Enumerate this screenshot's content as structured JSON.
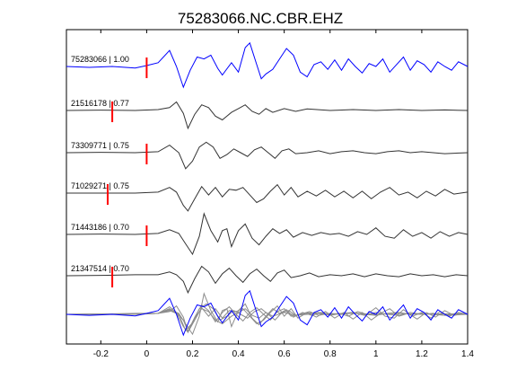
{
  "chart_data": {
    "type": "line",
    "title": "75283066.NC.CBR.EHZ",
    "xlim": [
      -0.35,
      1.4
    ],
    "xticks": [
      -0.2,
      0,
      0.2,
      0.4,
      0.6,
      0.8,
      1,
      1.2,
      1.4
    ],
    "xtick_labels": [
      "-0.2",
      "0",
      "0.2",
      "0.4",
      "0.6",
      "0.8",
      "1",
      "1.2",
      "1.4"
    ],
    "grid": false,
    "colors": {
      "reference": "#0000ff",
      "trace": "#333333",
      "overlay": "#8c8c8c",
      "pick": "#ff0000"
    },
    "traces": [
      {
        "label": "75283066 | 1.00",
        "pick_time": 0.0,
        "color": "#0000ff",
        "points": [
          [
            -0.35,
            0.0
          ],
          [
            -0.25,
            -0.05
          ],
          [
            -0.15,
            0.0
          ],
          [
            -0.05,
            -0.08
          ],
          [
            0.0,
            0.05
          ],
          [
            0.05,
            0.2
          ],
          [
            0.1,
            0.85
          ],
          [
            0.13,
            0.0
          ],
          [
            0.16,
            -1.1
          ],
          [
            0.19,
            -0.2
          ],
          [
            0.22,
            0.5
          ],
          [
            0.25,
            0.4
          ],
          [
            0.28,
            0.6
          ],
          [
            0.31,
            -0.1
          ],
          [
            0.33,
            -0.45
          ],
          [
            0.37,
            0.2
          ],
          [
            0.4,
            -0.3
          ],
          [
            0.43,
            1.0
          ],
          [
            0.45,
            1.25
          ],
          [
            0.48,
            0.1
          ],
          [
            0.5,
            -0.65
          ],
          [
            0.52,
            -0.4
          ],
          [
            0.55,
            -0.15
          ],
          [
            0.58,
            0.4
          ],
          [
            0.61,
            0.95
          ],
          [
            0.64,
            0.6
          ],
          [
            0.67,
            -0.3
          ],
          [
            0.7,
            -0.55
          ],
          [
            0.73,
            0.1
          ],
          [
            0.76,
            0.25
          ],
          [
            0.79,
            -0.15
          ],
          [
            0.82,
            0.35
          ],
          [
            0.85,
            -0.2
          ],
          [
            0.88,
            0.4
          ],
          [
            0.91,
            0.0
          ],
          [
            0.94,
            -0.35
          ],
          [
            0.97,
            0.15
          ],
          [
            1.0,
            0.0
          ],
          [
            1.03,
            0.4
          ],
          [
            1.06,
            -0.3
          ],
          [
            1.09,
            0.1
          ],
          [
            1.12,
            0.5
          ],
          [
            1.15,
            -0.2
          ],
          [
            1.18,
            0.3
          ],
          [
            1.21,
            0.1
          ],
          [
            1.24,
            -0.3
          ],
          [
            1.27,
            0.25
          ],
          [
            1.3,
            0.0
          ],
          [
            1.33,
            -0.2
          ],
          [
            1.36,
            0.25
          ],
          [
            1.4,
            0.0
          ]
        ]
      },
      {
        "label": "21516178 | 0.77",
        "pick_time": -0.15,
        "color": "#333333",
        "points": [
          [
            -0.35,
            0.0
          ],
          [
            -0.2,
            0.02
          ],
          [
            -0.05,
            0.0
          ],
          [
            0.05,
            0.05
          ],
          [
            0.1,
            0.15
          ],
          [
            0.13,
            0.45
          ],
          [
            0.16,
            -0.15
          ],
          [
            0.18,
            -0.95
          ],
          [
            0.21,
            -0.2
          ],
          [
            0.24,
            0.3
          ],
          [
            0.27,
            0.15
          ],
          [
            0.3,
            -0.3
          ],
          [
            0.33,
            -0.5
          ],
          [
            0.37,
            -0.1
          ],
          [
            0.4,
            0.1
          ],
          [
            0.43,
            0.3
          ],
          [
            0.46,
            -0.05
          ],
          [
            0.49,
            -0.2
          ],
          [
            0.52,
            0.1
          ],
          [
            0.55,
            -0.1
          ],
          [
            0.6,
            0.1
          ],
          [
            0.65,
            -0.05
          ],
          [
            0.7,
            0.08
          ],
          [
            0.8,
            0.0
          ],
          [
            0.9,
            0.05
          ],
          [
            1.0,
            0.0
          ],
          [
            1.1,
            0.05
          ],
          [
            1.2,
            0.0
          ],
          [
            1.3,
            0.03
          ],
          [
            1.4,
            0.0
          ]
        ]
      },
      {
        "label": "73309771 | 0.75",
        "pick_time": 0.0,
        "color": "#333333",
        "points": [
          [
            -0.35,
            0.0
          ],
          [
            -0.2,
            0.02
          ],
          [
            -0.05,
            0.0
          ],
          [
            0.05,
            0.05
          ],
          [
            0.1,
            0.4
          ],
          [
            0.14,
            0.0
          ],
          [
            0.17,
            -0.85
          ],
          [
            0.2,
            -0.45
          ],
          [
            0.23,
            0.3
          ],
          [
            0.26,
            0.55
          ],
          [
            0.29,
            0.3
          ],
          [
            0.32,
            -0.3
          ],
          [
            0.35,
            -0.1
          ],
          [
            0.38,
            0.2
          ],
          [
            0.41,
            0.0
          ],
          [
            0.44,
            -0.2
          ],
          [
            0.47,
            0.15
          ],
          [
            0.5,
            0.3
          ],
          [
            0.53,
            0.0
          ],
          [
            0.56,
            -0.3
          ],
          [
            0.59,
            0.1
          ],
          [
            0.62,
            0.2
          ],
          [
            0.65,
            -0.05
          ],
          [
            0.7,
            0.0
          ],
          [
            0.75,
            0.1
          ],
          [
            0.8,
            -0.05
          ],
          [
            0.85,
            0.05
          ],
          [
            0.9,
            0.1
          ],
          [
            0.95,
            0.0
          ],
          [
            1.0,
            -0.05
          ],
          [
            1.05,
            0.05
          ],
          [
            1.1,
            0.1
          ],
          [
            1.15,
            0.0
          ],
          [
            1.2,
            0.05
          ],
          [
            1.3,
            -0.05
          ],
          [
            1.4,
            0.0
          ]
        ]
      },
      {
        "label": "71029271 | 0.75",
        "pick_time": -0.17,
        "color": "#333333",
        "points": [
          [
            -0.35,
            0.0
          ],
          [
            -0.2,
            0.0
          ],
          [
            -0.05,
            0.0
          ],
          [
            0.05,
            0.05
          ],
          [
            0.1,
            0.3
          ],
          [
            0.13,
            0.05
          ],
          [
            0.16,
            -0.65
          ],
          [
            0.18,
            -0.95
          ],
          [
            0.21,
            -0.3
          ],
          [
            0.24,
            0.35
          ],
          [
            0.27,
            -0.1
          ],
          [
            0.3,
            0.3
          ],
          [
            0.33,
            -0.2
          ],
          [
            0.36,
            0.2
          ],
          [
            0.39,
            0.15
          ],
          [
            0.42,
            0.3
          ],
          [
            0.45,
            -0.1
          ],
          [
            0.48,
            -0.5
          ],
          [
            0.51,
            -0.3
          ],
          [
            0.54,
            0.1
          ],
          [
            0.57,
            0.45
          ],
          [
            0.6,
            -0.1
          ],
          [
            0.63,
            0.3
          ],
          [
            0.66,
            -0.2
          ],
          [
            0.7,
            0.1
          ],
          [
            0.74,
            -0.15
          ],
          [
            0.78,
            0.15
          ],
          [
            0.82,
            -0.2
          ],
          [
            0.86,
            0.1
          ],
          [
            0.9,
            -0.25
          ],
          [
            0.94,
            0.1
          ],
          [
            0.98,
            -0.3
          ],
          [
            1.02,
            0.05
          ],
          [
            1.06,
            0.3
          ],
          [
            1.1,
            -0.1
          ],
          [
            1.14,
            0.05
          ],
          [
            1.18,
            -0.25
          ],
          [
            1.22,
            0.1
          ],
          [
            1.26,
            -0.15
          ],
          [
            1.3,
            0.2
          ],
          [
            1.34,
            -0.05
          ],
          [
            1.4,
            0.05
          ]
        ]
      },
      {
        "label": "71443186 | 0.70",
        "pick_time": 0.0,
        "color": "#333333",
        "points": [
          [
            -0.35,
            0.0
          ],
          [
            -0.2,
            0.02
          ],
          [
            -0.05,
            0.0
          ],
          [
            0.05,
            0.05
          ],
          [
            0.1,
            0.25
          ],
          [
            0.14,
            0.05
          ],
          [
            0.17,
            -0.5
          ],
          [
            0.2,
            -1.05
          ],
          [
            0.23,
            -0.1
          ],
          [
            0.25,
            1.1
          ],
          [
            0.28,
            0.2
          ],
          [
            0.31,
            -0.4
          ],
          [
            0.33,
            0.2
          ],
          [
            0.35,
            0.3
          ],
          [
            0.37,
            -0.65
          ],
          [
            0.4,
            0.2
          ],
          [
            0.43,
            0.55
          ],
          [
            0.46,
            -0.2
          ],
          [
            0.49,
            -0.55
          ],
          [
            0.52,
            -0.1
          ],
          [
            0.55,
            0.3
          ],
          [
            0.58,
            0.05
          ],
          [
            0.61,
            0.25
          ],
          [
            0.64,
            -0.15
          ],
          [
            0.68,
            0.1
          ],
          [
            0.72,
            -0.05
          ],
          [
            0.76,
            0.1
          ],
          [
            0.8,
            0.0
          ],
          [
            0.84,
            0.05
          ],
          [
            0.88,
            -0.1
          ],
          [
            0.92,
            0.15
          ],
          [
            0.96,
            0.0
          ],
          [
            1.0,
            0.35
          ],
          [
            1.04,
            -0.1
          ],
          [
            1.08,
            -0.2
          ],
          [
            1.12,
            0.25
          ],
          [
            1.16,
            -0.1
          ],
          [
            1.2,
            0.1
          ],
          [
            1.24,
            -0.2
          ],
          [
            1.28,
            0.15
          ],
          [
            1.32,
            -0.1
          ],
          [
            1.36,
            0.1
          ],
          [
            1.4,
            0.0
          ]
        ]
      },
      {
        "label": "21347514 | 0.70",
        "pick_time": -0.15,
        "color": "#333333",
        "points": [
          [
            -0.35,
            0.0
          ],
          [
            -0.2,
            0.02
          ],
          [
            -0.05,
            0.05
          ],
          [
            0.05,
            0.05
          ],
          [
            0.1,
            0.2
          ],
          [
            0.13,
            0.05
          ],
          [
            0.16,
            -0.3
          ],
          [
            0.18,
            -0.9
          ],
          [
            0.21,
            -0.15
          ],
          [
            0.24,
            0.5
          ],
          [
            0.27,
            0.2
          ],
          [
            0.3,
            -0.4
          ],
          [
            0.33,
            0.1
          ],
          [
            0.36,
            0.4
          ],
          [
            0.39,
            0.0
          ],
          [
            0.42,
            -0.35
          ],
          [
            0.45,
            0.1
          ],
          [
            0.48,
            0.35
          ],
          [
            0.51,
            0.0
          ],
          [
            0.54,
            -0.3
          ],
          [
            0.57,
            0.15
          ],
          [
            0.6,
            0.3
          ],
          [
            0.63,
            -0.1
          ],
          [
            0.67,
            0.0
          ],
          [
            0.71,
            0.15
          ],
          [
            0.75,
            -0.05
          ],
          [
            0.8,
            0.05
          ],
          [
            0.85,
            0.0
          ],
          [
            0.9,
            0.1
          ],
          [
            0.95,
            -0.05
          ],
          [
            1.0,
            0.1
          ],
          [
            1.05,
            0.0
          ],
          [
            1.1,
            -0.05
          ],
          [
            1.15,
            0.1
          ],
          [
            1.2,
            0.0
          ],
          [
            1.25,
            0.05
          ],
          [
            1.3,
            -0.05
          ],
          [
            1.35,
            0.05
          ],
          [
            1.4,
            0.0
          ]
        ]
      }
    ]
  }
}
